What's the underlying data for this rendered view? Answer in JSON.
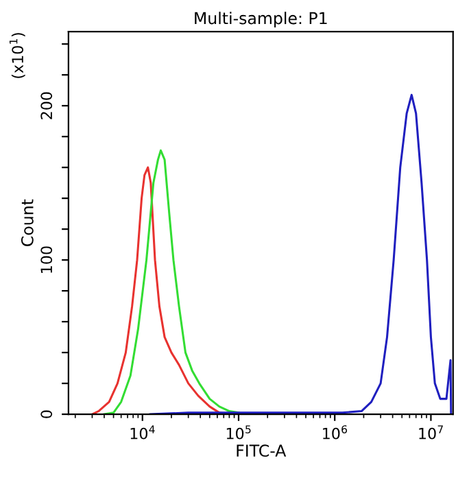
{
  "chart_data": {
    "type": "line",
    "title": "Multi-sample: P1",
    "xlabel": "FITC-A",
    "ylabel": "Count",
    "annotations": [
      "(x10$^{1}$)"
    ],
    "log": "x",
    "grid": false,
    "marker": "none",
    "line_style": "solid",
    "xlim": [
      1700,
      17000000
    ],
    "ylim": [
      0,
      248
    ],
    "xticks": [
      {
        "value": 10000,
        "label": "10$^{4}$"
      },
      {
        "value": 100000,
        "label": "10$^{5}$"
      },
      {
        "value": 1000000,
        "label": "10$^{6}$"
      },
      {
        "value": 10000000,
        "label": "10$^{7}$"
      }
    ],
    "yticks": [
      0,
      {
        "value": 20,
        "label": null
      },
      {
        "value": 40,
        "label": null
      },
      {
        "value": 60,
        "label": null
      },
      {
        "value": 80,
        "label": null
      },
      100,
      {
        "value": 120,
        "label": null
      },
      {
        "value": 140,
        "label": null
      },
      {
        "value": 160,
        "label": null
      },
      {
        "value": 180,
        "label": null
      },
      200,
      {
        "value": 220,
        "label": null
      },
      {
        "value": 240,
        "label": null
      }
    ],
    "series": [
      {
        "color": "#e8322f",
        "x": [
          3000,
          3500,
          4500,
          5500,
          6700,
          7800,
          8800,
          9800,
          10500,
          11400,
          12200,
          13500,
          15000,
          17000,
          20000,
          24000,
          30000,
          38000,
          50000,
          63000,
          80000
        ],
        "values": [
          0,
          2,
          8,
          20,
          40,
          70,
          100,
          140,
          155,
          160,
          150,
          100,
          70,
          50,
          40,
          32,
          20,
          12,
          5,
          1,
          0
        ]
      },
      {
        "color": "#33dd33",
        "x": [
          4000,
          5000,
          6000,
          7500,
          9000,
          11000,
          13000,
          14500,
          15500,
          17000,
          19000,
          21000,
          24000,
          28000,
          33000,
          39000,
          50000,
          63000,
          80000,
          100000
        ],
        "values": [
          0,
          1,
          8,
          25,
          55,
          100,
          150,
          165,
          171,
          165,
          130,
          100,
          70,
          40,
          28,
          20,
          10,
          5,
          2,
          1
        ]
      },
      {
        "color": "#1f1fbf",
        "x": [
          12000,
          30000,
          100000,
          500000,
          1200000,
          1900000,
          2400000,
          3000000,
          3500000,
          4100000,
          4800000,
          5600000,
          6300000,
          7000000,
          8000000,
          9100000,
          10000000,
          11000000,
          12500000,
          14500000,
          16000000,
          16200000
        ],
        "values": [
          0,
          1,
          1,
          1,
          1,
          2,
          8,
          20,
          50,
          100,
          160,
          195,
          207,
          195,
          150,
          100,
          50,
          20,
          10,
          10,
          35,
          0
        ]
      }
    ]
  }
}
